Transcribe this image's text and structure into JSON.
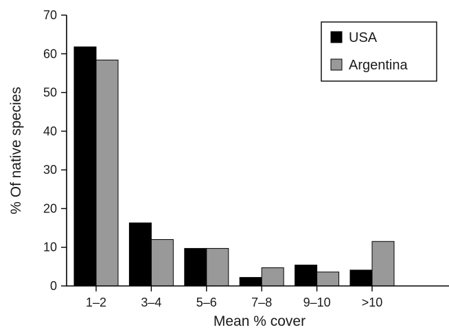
{
  "chart_data": {
    "type": "bar",
    "categories": [
      "1–2",
      "3–4",
      "5–6",
      "7–8",
      "9–10",
      ">10"
    ],
    "series": [
      {
        "name": "USA",
        "values": [
          61.8,
          16.3,
          9.7,
          2.2,
          5.4,
          4.1
        ],
        "color": "#000000"
      },
      {
        "name": "Argentina",
        "values": [
          58.4,
          12.0,
          9.7,
          4.7,
          3.6,
          11.5
        ],
        "color": "#999999"
      }
    ],
    "xlabel": "Mean % cover",
    "ylabel": "% Of native species",
    "ylim": [
      0,
      70
    ],
    "yticks": [
      "0",
      "10",
      "20",
      "30",
      "40",
      "50",
      "60",
      "70"
    ],
    "grid": false,
    "legend_position": "top-right"
  }
}
